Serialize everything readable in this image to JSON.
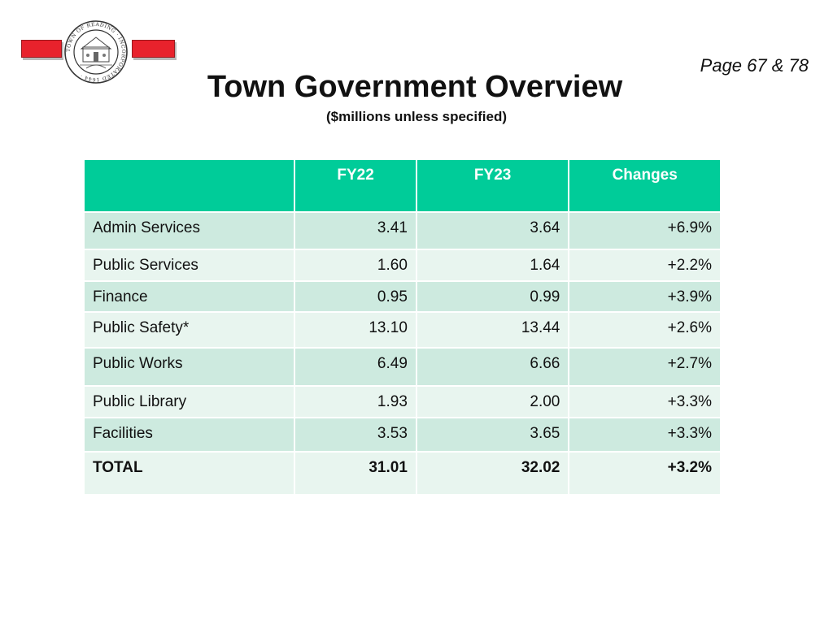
{
  "header": {
    "page_ref": "Page 67 & 78",
    "title": "Town Government Overview",
    "subtitle": "($millions unless specified)",
    "seal_text": "TOWN OF READING · INCORPORATED 1644"
  },
  "colors": {
    "header_green": "#00cc99",
    "row_dark": "#cdeadf",
    "row_light": "#e8f5ef",
    "red_bar": "#e8222c"
  },
  "table": {
    "columns": [
      "",
      "FY22",
      "FY23",
      "Changes"
    ],
    "rows": [
      {
        "label": "Admin Services",
        "fy22": "3.41",
        "fy23": "3.64",
        "change": "+6.9%"
      },
      {
        "label": "Public Services",
        "fy22": "1.60",
        "fy23": "1.64",
        "change": "+2.2%"
      },
      {
        "label": "Finance",
        "fy22": "0.95",
        "fy23": "0.99",
        "change": "+3.9%"
      },
      {
        "label": "Public Safety*",
        "fy22": "13.10",
        "fy23": "13.44",
        "change": "+2.6%"
      },
      {
        "label": "Public Works",
        "fy22": "6.49",
        "fy23": "6.66",
        "change": "+2.7%"
      },
      {
        "label": "Public Library",
        "fy22": "1.93",
        "fy23": "2.00",
        "change": "+3.3%"
      },
      {
        "label": "Facilities",
        "fy22": "3.53",
        "fy23": "3.65",
        "change": "+3.3%"
      }
    ],
    "total": {
      "label": "TOTAL",
      "fy22": "31.01",
      "fy23": "32.02",
      "change": "+3.2%"
    }
  }
}
